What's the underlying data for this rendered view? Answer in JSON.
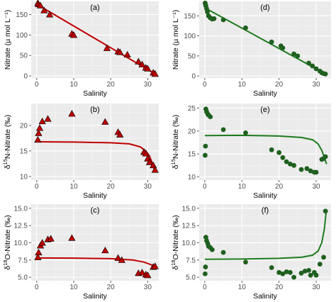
{
  "chart_data": [
    {
      "id": "a",
      "type": "scatter",
      "panel_label": "(a)",
      "xlabel": "Salinity",
      "ylabel": "Nitrate (µ mol L⁻¹)",
      "xlim": [
        -1.5,
        33
      ],
      "ylim": [
        -5,
        182
      ],
      "xticks": [
        0,
        10,
        20,
        30
      ],
      "yticks": [
        0,
        50,
        100,
        150
      ],
      "marker": "triangle",
      "color": "#c00000",
      "line_color": "#c00000",
      "points": [
        [
          0.3,
          178
        ],
        [
          0.5,
          175
        ],
        [
          1.0,
          172
        ],
        [
          2.0,
          160
        ],
        [
          3.5,
          150
        ],
        [
          9.5,
          103
        ],
        [
          10.0,
          100
        ],
        [
          19.0,
          68
        ],
        [
          22.0,
          60
        ],
        [
          22.5,
          58
        ],
        [
          24.5,
          52
        ],
        [
          27.5,
          35
        ],
        [
          28.5,
          28
        ],
        [
          29.5,
          20
        ],
        [
          30.0,
          18
        ],
        [
          31.5,
          8
        ],
        [
          32.0,
          5
        ]
      ],
      "line": [
        [
          0,
          175
        ],
        [
          32,
          5
        ]
      ]
    },
    {
      "id": "d",
      "type": "scatter",
      "panel_label": "(d)",
      "xlabel": "Salinity",
      "ylabel": "Nitrate (µ mol L⁻¹)",
      "xlim": [
        -1.5,
        34
      ],
      "ylim": [
        -5,
        186
      ],
      "xticks": [
        0,
        10,
        20,
        30
      ],
      "yticks": [
        0,
        50,
        100,
        150
      ],
      "marker": "circle",
      "color": "#1f5f1f",
      "line_color": "#1e7a1e",
      "points": [
        [
          0.1,
          182
        ],
        [
          0.2,
          178
        ],
        [
          0.3,
          175
        ],
        [
          0.5,
          168
        ],
        [
          0.7,
          160
        ],
        [
          1.0,
          150
        ],
        [
          1.5,
          145
        ],
        [
          2.0,
          142
        ],
        [
          2.5,
          143
        ],
        [
          5.0,
          140
        ],
        [
          11.0,
          120
        ],
        [
          18.0,
          85
        ],
        [
          20.5,
          75
        ],
        [
          21.0,
          70
        ],
        [
          24.0,
          55
        ],
        [
          25.0,
          50
        ],
        [
          28.0,
          32
        ],
        [
          29.0,
          25
        ],
        [
          30.0,
          18
        ],
        [
          31.0,
          12
        ],
        [
          31.5,
          8
        ],
        [
          32.0,
          6
        ],
        [
          32.5,
          5
        ]
      ],
      "line": [
        [
          0,
          170
        ],
        [
          32.5,
          5
        ]
      ]
    },
    {
      "id": "b",
      "type": "scatter",
      "panel_label": "(b)",
      "xlabel": "Salinity",
      "ylabel": "δ15N-Nitrate (‰)",
      "ylabel_parts": [
        "δ",
        "15",
        "N-Nitrate (‰)"
      ],
      "xlim": [
        -1.5,
        33
      ],
      "ylim": [
        9.3,
        24.3
      ],
      "xticks": [
        0,
        10,
        20,
        30
      ],
      "yticks": [
        10,
        15,
        20
      ],
      "marker": "triangle",
      "color": "#c00000",
      "line_color": "#c00000",
      "points": [
        [
          0.3,
          17.2
        ],
        [
          0.5,
          18.5
        ],
        [
          0.8,
          19.5
        ],
        [
          1.5,
          20.8
        ],
        [
          3.0,
          21.3
        ],
        [
          9.5,
          22.3
        ],
        [
          18.5,
          20.7
        ],
        [
          22.0,
          18.7
        ],
        [
          22.5,
          18.2
        ],
        [
          29.0,
          14.8
        ],
        [
          29.5,
          14.5
        ],
        [
          30.0,
          13.5
        ],
        [
          30.5,
          12.8
        ],
        [
          31.5,
          12.2
        ],
        [
          32.0,
          11.3
        ]
      ],
      "line": [
        [
          0,
          16.8
        ],
        [
          10,
          16.75
        ],
        [
          20,
          16.6
        ],
        [
          25,
          16.4
        ],
        [
          28,
          15.8
        ],
        [
          29.5,
          15.0
        ],
        [
          30.5,
          14.0
        ],
        [
          31.3,
          12.5
        ],
        [
          31.8,
          11.3
        ]
      ]
    },
    {
      "id": "e",
      "type": "scatter",
      "panel_label": "(e)",
      "xlabel": "Salinity",
      "ylabel": "δ15N-Nitrate (‰)",
      "ylabel_parts": [
        "δ",
        "15",
        "N-Nitrate (‰)"
      ],
      "xlim": [
        -1.5,
        34
      ],
      "ylim": [
        9.3,
        26
      ],
      "xticks": [
        0,
        10,
        20,
        30
      ],
      "yticks": [
        10,
        15,
        20,
        25
      ],
      "marker": "circle",
      "color": "#1f5f1f",
      "line_color": "#1e7a1e",
      "points": [
        [
          0.1,
          14.7
        ],
        [
          0.2,
          16.7
        ],
        [
          0.3,
          24.8
        ],
        [
          0.5,
          24.2
        ],
        [
          0.8,
          23.7
        ],
        [
          1.0,
          23.5
        ],
        [
          1.5,
          23.1
        ],
        [
          5.0,
          20.3
        ],
        [
          11.0,
          19.6
        ],
        [
          18.0,
          15.9
        ],
        [
          20.0,
          15.3
        ],
        [
          21.0,
          14.2
        ],
        [
          22.0,
          13.3
        ],
        [
          23.0,
          12.8
        ],
        [
          24.0,
          12.5
        ],
        [
          26.0,
          11.6
        ],
        [
          27.5,
          11.8
        ],
        [
          28.5,
          11.3
        ],
        [
          29.5,
          11.0
        ],
        [
          30.0,
          11.0
        ],
        [
          31.5,
          13.8
        ],
        [
          32.0,
          14.0
        ],
        [
          32.5,
          14.4
        ]
      ],
      "line": [
        [
          0,
          19.0
        ],
        [
          10,
          19.05
        ],
        [
          20,
          18.9
        ],
        [
          26,
          18.6
        ],
        [
          29,
          18.1
        ],
        [
          30.5,
          17.2
        ],
        [
          31.5,
          15.8
        ],
        [
          32.3,
          14.0
        ],
        [
          32.8,
          12.8
        ]
      ]
    },
    {
      "id": "c",
      "type": "scatter",
      "panel_label": "(c)",
      "xlabel": "Salinity",
      "ylabel": "δ18O-Nitrate (‰)",
      "ylabel_parts": [
        "δ",
        "18",
        "O-Nitrate (‰)"
      ],
      "xlim": [
        -1.5,
        33
      ],
      "ylim": [
        4.5,
        15.6
      ],
      "xticks": [
        0,
        10,
        20,
        30
      ],
      "yticks": [
        5.0,
        7.5,
        10.0,
        12.5,
        15.0
      ],
      "marker": "triangle",
      "color": "#c00000",
      "line_color": "#c00000",
      "points": [
        [
          0.3,
          7.9
        ],
        [
          0.5,
          8.6
        ],
        [
          1.0,
          9.6
        ],
        [
          1.5,
          10.0
        ],
        [
          3.0,
          10.5
        ],
        [
          3.8,
          10.6
        ],
        [
          9.5,
          10.7
        ],
        [
          18.5,
          8.9
        ],
        [
          22.0,
          7.8
        ],
        [
          23.0,
          7.5
        ],
        [
          27.5,
          5.6
        ],
        [
          28.5,
          5.7
        ],
        [
          29.5,
          5.4
        ],
        [
          30.0,
          5.3
        ],
        [
          31.5,
          6.5
        ],
        [
          32.0,
          6.6
        ]
      ],
      "line": [
        [
          0,
          7.8
        ],
        [
          10,
          7.78
        ],
        [
          20,
          7.7
        ],
        [
          26,
          7.5
        ],
        [
          29,
          7.2
        ],
        [
          31,
          6.8
        ],
        [
          32,
          6.4
        ]
      ]
    },
    {
      "id": "f",
      "type": "scatter",
      "panel_label": "(f)",
      "xlabel": "Salinity",
      "ylabel": "δ18O-Nitrate (‰)",
      "ylabel_parts": [
        "δ",
        "18",
        "O-Nitrate (‰)"
      ],
      "xlim": [
        -1.5,
        34
      ],
      "ylim": [
        4.5,
        15.6
      ],
      "xticks": [
        0,
        10,
        20,
        30
      ],
      "yticks": [
        5.0,
        7.5,
        10.0,
        12.5,
        15.0
      ],
      "marker": "circle",
      "color": "#1f5f1f",
      "line_color": "#1e7a1e",
      "points": [
        [
          0.1,
          5.5
        ],
        [
          0.2,
          6.5
        ],
        [
          0.3,
          10.8
        ],
        [
          0.5,
          10.3
        ],
        [
          0.8,
          9.9
        ],
        [
          1.0,
          9.5
        ],
        [
          1.5,
          9.3
        ],
        [
          2.0,
          9.0
        ],
        [
          5.0,
          8.6
        ],
        [
          11.0,
          7.2
        ],
        [
          18.0,
          6.4
        ],
        [
          20.0,
          5.7
        ],
        [
          21.0,
          5.5
        ],
        [
          22.0,
          5.8
        ],
        [
          23.0,
          5.7
        ],
        [
          24.0,
          5.0
        ],
        [
          26.0,
          5.6
        ],
        [
          27.0,
          5.9
        ],
        [
          28.0,
          6.0
        ],
        [
          28.5,
          5.3
        ],
        [
          29.5,
          5.7
        ],
        [
          30.0,
          5.3
        ],
        [
          31.0,
          6.9
        ],
        [
          32.0,
          7.9
        ],
        [
          32.5,
          14.6
        ]
      ],
      "line": [
        [
          0,
          7.6
        ],
        [
          10,
          7.65
        ],
        [
          20,
          7.75
        ],
        [
          26,
          7.9
        ],
        [
          29,
          8.2
        ],
        [
          30.5,
          8.8
        ],
        [
          31.5,
          10.0
        ],
        [
          32.2,
          12.0
        ],
        [
          32.7,
          14.6
        ]
      ]
    }
  ]
}
